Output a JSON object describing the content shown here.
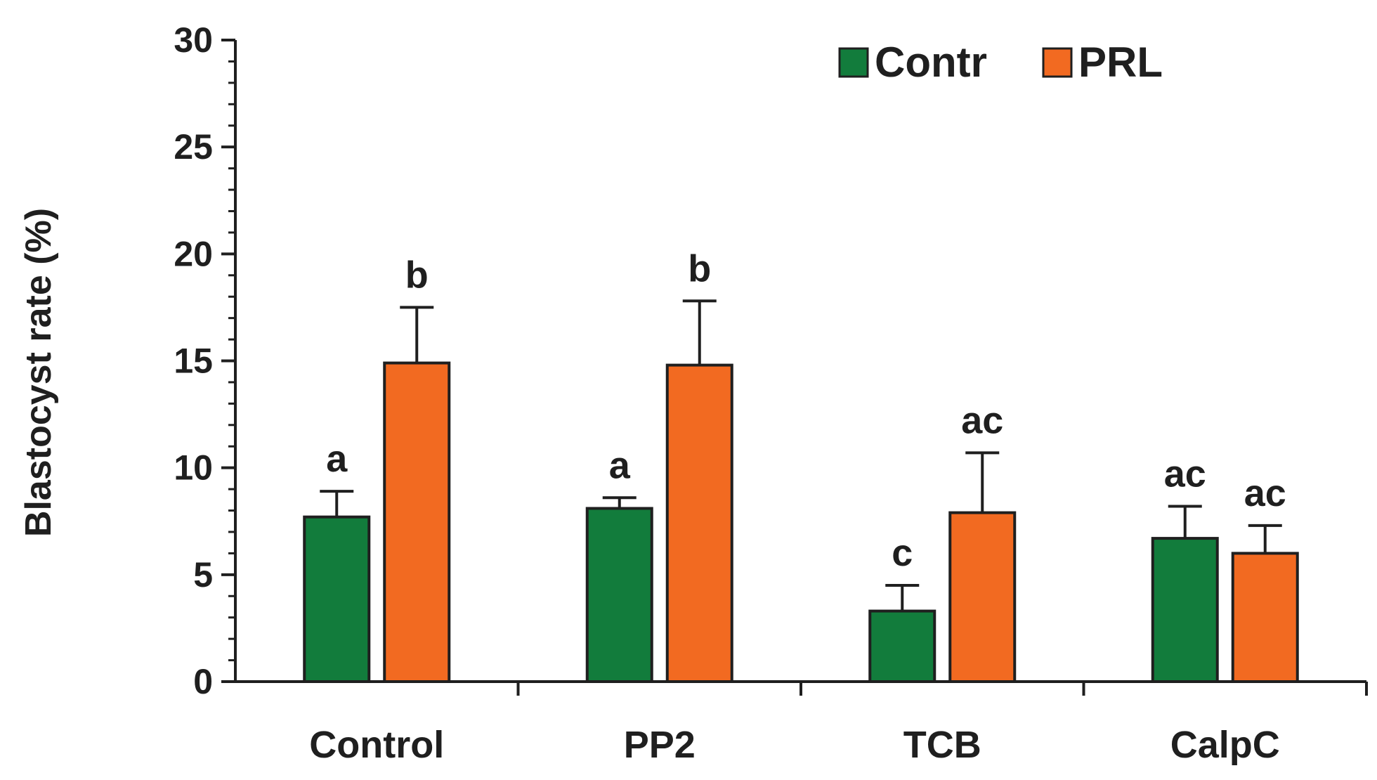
{
  "chart_data": {
    "type": "bar",
    "title": "",
    "xlabel": "",
    "ylabel": "Blastocyst rate (%)",
    "ylim": [
      0,
      30
    ],
    "yticks": [
      0,
      5,
      10,
      15,
      20,
      25,
      30
    ],
    "grid": false,
    "legend_position": "top-right",
    "categories": [
      "Control",
      "PP2",
      "TCB",
      "CalpC"
    ],
    "series": [
      {
        "name": "Contr",
        "color": "#127c3c",
        "values": [
          7.7,
          8.1,
          3.3,
          6.7
        ],
        "errors": [
          1.2,
          0.5,
          1.2,
          1.5
        ],
        "labels": [
          "a",
          "a",
          "c",
          "ac"
        ]
      },
      {
        "name": "PRL",
        "color": "#f26a21",
        "values": [
          14.9,
          14.8,
          7.9,
          6.0
        ],
        "errors": [
          2.6,
          3.0,
          2.8,
          1.3
        ],
        "labels": [
          "b",
          "b",
          "ac",
          "ac"
        ]
      }
    ]
  }
}
